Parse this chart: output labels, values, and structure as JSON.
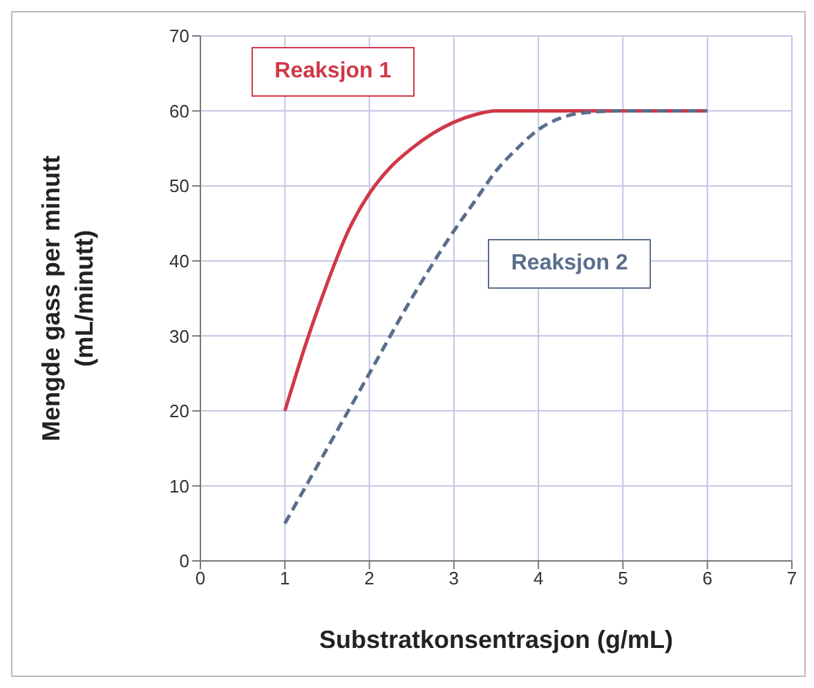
{
  "chart_data": {
    "type": "line",
    "xlabel": "Substratkonsentrasjon  (g/mL)",
    "ylabel": "Mengde gass per minutt\n(mL/minutt)",
    "xlim": [
      0,
      7
    ],
    "xticks": [
      0,
      1,
      2,
      3,
      4,
      5,
      6,
      7
    ],
    "ylim": [
      0,
      70
    ],
    "yticks": [
      0,
      10,
      20,
      30,
      40,
      50,
      60,
      70
    ],
    "grid": true,
    "marker": "none",
    "series": [
      {
        "name": "Reaksjon 1",
        "color": "#d03848",
        "line_style": "solid",
        "x": [
          1,
          1.25,
          1.5,
          1.75,
          2,
          2.25,
          2.5,
          2.75,
          3,
          3.25,
          3.5,
          4,
          4.5,
          5,
          6
        ],
        "values": [
          20,
          29,
          37,
          44,
          49,
          52.5,
          55,
          57,
          58.5,
          59.5,
          60,
          60,
          60,
          60,
          60
        ]
      },
      {
        "name": "Reaksjon 2",
        "color": "#5a6e8c",
        "line_style": "dashed",
        "x": [
          1,
          1.5,
          2,
          2.5,
          3,
          3.25,
          3.5,
          3.75,
          4,
          4.25,
          4.5,
          5,
          5.5,
          6
        ],
        "values": [
          5,
          15,
          25,
          35,
          44,
          48,
          52,
          55,
          57.5,
          59,
          59.7,
          60,
          60,
          60
        ]
      }
    ]
  }
}
